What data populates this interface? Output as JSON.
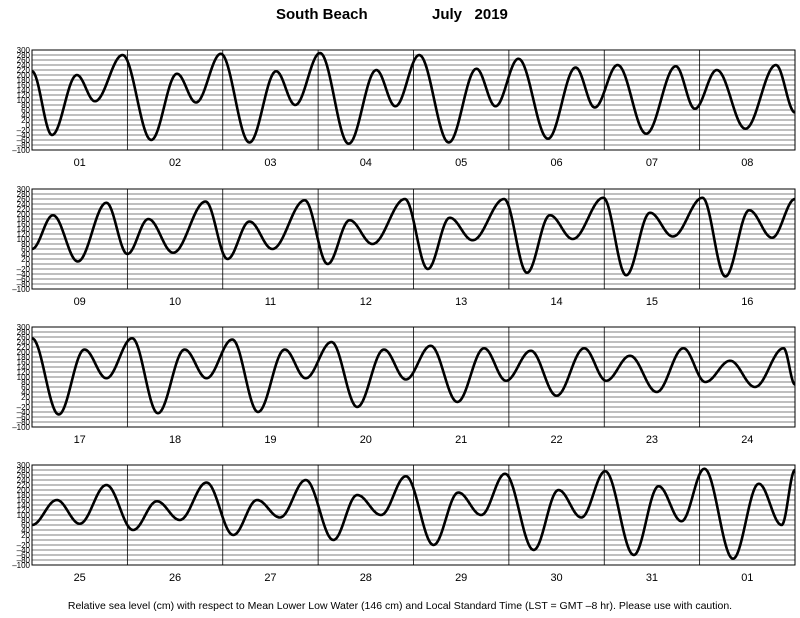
{
  "header": {
    "station": "South Beach",
    "month": "July",
    "year": "2019"
  },
  "footer": {
    "note": "Relative sea level (cm) with respect to Mean Lower Low Water (146 cm) and Local Standard Time (LST = GMT –8 hr). Please use with caution."
  },
  "chart_data": {
    "type": "line",
    "ylim": [
      -100,
      300
    ],
    "yticks": [
      300,
      280,
      260,
      240,
      220,
      200,
      180,
      160,
      140,
      120,
      100,
      80,
      60,
      40,
      20,
      0,
      -20,
      -40,
      -60,
      -80,
      -100
    ],
    "ytick_labels": [
      "300",
      "280",
      "260",
      "240",
      "220",
      "200",
      "180",
      "160",
      "140",
      "120",
      "100",
      "80",
      "60",
      "40",
      "20",
      "0",
      "–20",
      "–40",
      "–60",
      "–80",
      "–100"
    ],
    "panels": [
      {
        "days": [
          "01",
          "02",
          "03",
          "04",
          "05",
          "06",
          "07",
          "08"
        ],
        "series": [
          {
            "x": 0.0,
            "y": 215
          },
          {
            "x": 0.21,
            "y": -40
          },
          {
            "x": 0.47,
            "y": 200
          },
          {
            "x": 0.66,
            "y": 95
          },
          {
            "x": 0.95,
            "y": 280
          },
          {
            "x": 1.25,
            "y": -60
          },
          {
            "x": 1.52,
            "y": 205
          },
          {
            "x": 1.72,
            "y": 90
          },
          {
            "x": 1.98,
            "y": 285
          },
          {
            "x": 2.28,
            "y": -70
          },
          {
            "x": 2.56,
            "y": 215
          },
          {
            "x": 2.76,
            "y": 80
          },
          {
            "x": 3.02,
            "y": 288
          },
          {
            "x": 3.32,
            "y": -75
          },
          {
            "x": 3.61,
            "y": 220
          },
          {
            "x": 3.81,
            "y": 75
          },
          {
            "x": 4.06,
            "y": 280
          },
          {
            "x": 4.37,
            "y": -70
          },
          {
            "x": 4.66,
            "y": 225
          },
          {
            "x": 4.86,
            "y": 75
          },
          {
            "x": 5.1,
            "y": 265
          },
          {
            "x": 5.41,
            "y": -55
          },
          {
            "x": 5.7,
            "y": 230
          },
          {
            "x": 5.9,
            "y": 70
          },
          {
            "x": 6.14,
            "y": 240
          },
          {
            "x": 6.44,
            "y": -35
          },
          {
            "x": 6.75,
            "y": 235
          },
          {
            "x": 6.95,
            "y": 65
          },
          {
            "x": 7.18,
            "y": 220
          },
          {
            "x": 7.48,
            "y": -15
          },
          {
            "x": 7.8,
            "y": 240
          },
          {
            "x": 8.0,
            "y": 50
          }
        ]
      },
      {
        "days": [
          "09",
          "10",
          "11",
          "12",
          "13",
          "14",
          "15",
          "16"
        ],
        "series": [
          {
            "x": 0.0,
            "y": 60
          },
          {
            "x": 0.22,
            "y": 195
          },
          {
            "x": 0.48,
            "y": 10
          },
          {
            "x": 0.78,
            "y": 245
          },
          {
            "x": 1.0,
            "y": 40
          },
          {
            "x": 1.22,
            "y": 180
          },
          {
            "x": 1.48,
            "y": 45
          },
          {
            "x": 1.82,
            "y": 250
          },
          {
            "x": 2.05,
            "y": 20
          },
          {
            "x": 2.28,
            "y": 170
          },
          {
            "x": 2.52,
            "y": 60
          },
          {
            "x": 2.86,
            "y": 255
          },
          {
            "x": 3.1,
            "y": 0
          },
          {
            "x": 3.33,
            "y": 175
          },
          {
            "x": 3.57,
            "y": 80
          },
          {
            "x": 3.91,
            "y": 260
          },
          {
            "x": 4.15,
            "y": -20
          },
          {
            "x": 4.38,
            "y": 185
          },
          {
            "x": 4.62,
            "y": 95
          },
          {
            "x": 4.95,
            "y": 260
          },
          {
            "x": 5.19,
            "y": -35
          },
          {
            "x": 5.43,
            "y": 195
          },
          {
            "x": 5.67,
            "y": 100
          },
          {
            "x": 5.99,
            "y": 265
          },
          {
            "x": 6.23,
            "y": -45
          },
          {
            "x": 6.48,
            "y": 205
          },
          {
            "x": 6.72,
            "y": 110
          },
          {
            "x": 7.03,
            "y": 265
          },
          {
            "x": 7.27,
            "y": -50
          },
          {
            "x": 7.52,
            "y": 215
          },
          {
            "x": 7.76,
            "y": 105
          },
          {
            "x": 8.0,
            "y": 260
          }
        ]
      },
      {
        "days": [
          "17",
          "18",
          "19",
          "20",
          "21",
          "22",
          "23",
          "24"
        ],
        "series": [
          {
            "x": 0.0,
            "y": 255
          },
          {
            "x": 0.28,
            "y": -50
          },
          {
            "x": 0.55,
            "y": 210
          },
          {
            "x": 0.78,
            "y": 95
          },
          {
            "x": 1.05,
            "y": 255
          },
          {
            "x": 1.32,
            "y": -45
          },
          {
            "x": 1.6,
            "y": 210
          },
          {
            "x": 1.83,
            "y": 95
          },
          {
            "x": 2.1,
            "y": 250
          },
          {
            "x": 2.37,
            "y": -40
          },
          {
            "x": 2.65,
            "y": 210
          },
          {
            "x": 2.87,
            "y": 95
          },
          {
            "x": 3.14,
            "y": 240
          },
          {
            "x": 3.41,
            "y": -20
          },
          {
            "x": 3.69,
            "y": 210
          },
          {
            "x": 3.92,
            "y": 90
          },
          {
            "x": 4.18,
            "y": 225
          },
          {
            "x": 4.46,
            "y": 0
          },
          {
            "x": 4.74,
            "y": 215
          },
          {
            "x": 4.97,
            "y": 85
          },
          {
            "x": 5.23,
            "y": 205
          },
          {
            "x": 5.5,
            "y": 25
          },
          {
            "x": 5.79,
            "y": 215
          },
          {
            "x": 6.02,
            "y": 85
          },
          {
            "x": 6.27,
            "y": 185
          },
          {
            "x": 6.55,
            "y": 40
          },
          {
            "x": 6.83,
            "y": 215
          },
          {
            "x": 7.06,
            "y": 80
          },
          {
            "x": 7.32,
            "y": 165
          },
          {
            "x": 7.58,
            "y": 60
          },
          {
            "x": 7.88,
            "y": 215
          },
          {
            "x": 8.0,
            "y": 70
          }
        ]
      },
      {
        "days": [
          "25",
          "26",
          "27",
          "28",
          "29",
          "30",
          "31",
          "01"
        ],
        "series": [
          {
            "x": 0.0,
            "y": 60
          },
          {
            "x": 0.26,
            "y": 160
          },
          {
            "x": 0.5,
            "y": 65
          },
          {
            "x": 0.78,
            "y": 220
          },
          {
            "x": 1.06,
            "y": 40
          },
          {
            "x": 1.31,
            "y": 155
          },
          {
            "x": 1.55,
            "y": 80
          },
          {
            "x": 1.83,
            "y": 230
          },
          {
            "x": 2.11,
            "y": 20
          },
          {
            "x": 2.36,
            "y": 160
          },
          {
            "x": 2.6,
            "y": 90
          },
          {
            "x": 2.87,
            "y": 240
          },
          {
            "x": 3.16,
            "y": 0
          },
          {
            "x": 3.41,
            "y": 180
          },
          {
            "x": 3.66,
            "y": 100
          },
          {
            "x": 3.92,
            "y": 255
          },
          {
            "x": 4.21,
            "y": -20
          },
          {
            "x": 4.47,
            "y": 190
          },
          {
            "x": 4.71,
            "y": 100
          },
          {
            "x": 4.96,
            "y": 265
          },
          {
            "x": 5.26,
            "y": -40
          },
          {
            "x": 5.52,
            "y": 200
          },
          {
            "x": 5.76,
            "y": 90
          },
          {
            "x": 6.01,
            "y": 275
          },
          {
            "x": 6.31,
            "y": -60
          },
          {
            "x": 6.57,
            "y": 215
          },
          {
            "x": 6.81,
            "y": 75
          },
          {
            "x": 7.05,
            "y": 285
          },
          {
            "x": 7.35,
            "y": -75
          },
          {
            "x": 7.62,
            "y": 225
          },
          {
            "x": 7.86,
            "y": 60
          },
          {
            "x": 8.0,
            "y": 280
          }
        ]
      }
    ]
  }
}
